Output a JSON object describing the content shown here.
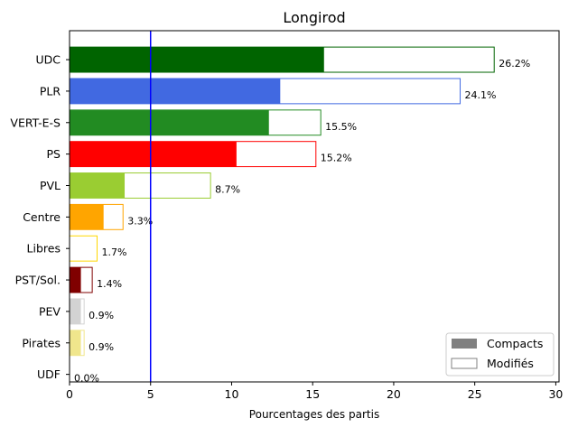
{
  "chart_data": {
    "type": "bar",
    "orientation": "horizontal",
    "title": "Longirod",
    "xlabel": "Pourcentages des partis",
    "ylabel": "",
    "xlim": [
      0,
      30.2
    ],
    "x_ticks": [
      "0",
      "5",
      "10",
      "15",
      "20",
      "25",
      "30"
    ],
    "threshold_line": 5,
    "threshold_color": "#0000ff",
    "categories": [
      "UDC",
      "PLR",
      "VERT-E-S",
      "PS",
      "PVL",
      "Centre",
      "Libres",
      "PST/Sol.",
      "PEV",
      "Pirates",
      "UDF"
    ],
    "colors": [
      "#006400",
      "#4169e1",
      "#228b22",
      "#ff0000",
      "#9acd32",
      "#ffa500",
      "#ffd700",
      "#800000",
      "#d3d3d3",
      "#f0e68c",
      "#8b4513"
    ],
    "series": [
      {
        "name": "Compacts",
        "values": [
          15.7,
          13.0,
          12.3,
          10.3,
          3.4,
          2.1,
          0.0,
          0.7,
          0.7,
          0.7,
          0.0
        ]
      },
      {
        "name": "Modifiés",
        "values": [
          26.2,
          24.1,
          15.5,
          15.2,
          8.7,
          3.3,
          1.7,
          1.4,
          0.9,
          0.9,
          0.0
        ]
      }
    ],
    "value_labels": [
      "26.2%",
      "24.1%",
      "15.5%",
      "15.2%",
      "8.7%",
      "3.3%",
      "1.7%",
      "1.4%",
      "0.9%",
      "0.9%",
      "0.0%"
    ],
    "legend": {
      "position": "lower-right",
      "entries": [
        {
          "label": "Compacts",
          "fill": "#808080"
        },
        {
          "label": "Modifiés",
          "fill": "#ffffff"
        }
      ]
    }
  }
}
